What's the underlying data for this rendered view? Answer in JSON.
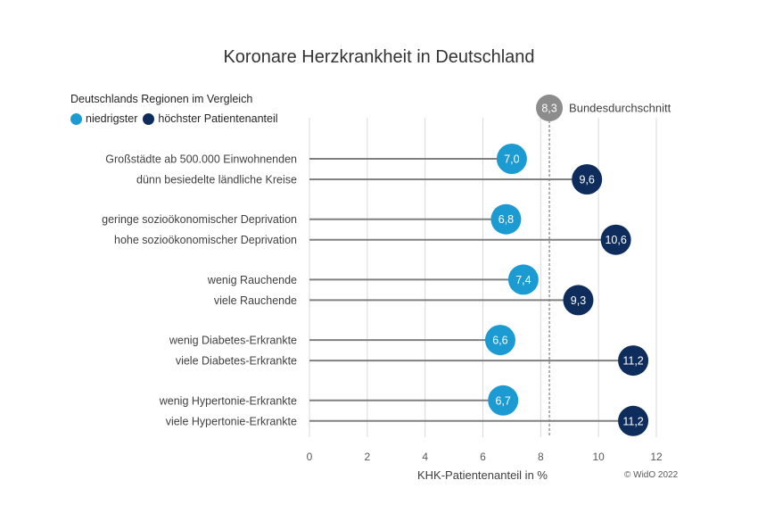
{
  "chart_data": {
    "type": "lollipop",
    "title": "Koronare Herzkrankheit in Deutschland",
    "subtitle": "Deutschlands Regionen im Vergleich",
    "legend": [
      {
        "name": "niedrigster",
        "color": "#1b9bd1"
      },
      {
        "name": "höchster Patientenanteil",
        "color": "#0f2d5c"
      }
    ],
    "xlabel": "KHK-Patientenanteil in %",
    "xlim": [
      0,
      12
    ],
    "xticks": [
      "0",
      "2",
      "4",
      "6",
      "8",
      "10",
      "12"
    ],
    "grid": "vertical",
    "reference": {
      "value": 8.3,
      "label": "8,3",
      "text": "Bundesdurchschnitt"
    },
    "rows": [
      {
        "label": "Großstädte ab 500.000 Einwohnenden",
        "value": 7.0,
        "value_label": "7,0",
        "series": "niedrigster"
      },
      {
        "label": "dünn besiedelte ländliche Kreise",
        "value": 9.6,
        "value_label": "9,6",
        "series": "höchster Patientenanteil"
      },
      {
        "label": "geringe sozioökonomischer Deprivation",
        "value": 6.8,
        "value_label": "6,8",
        "series": "niedrigster"
      },
      {
        "label": "hohe sozioökonomischer Deprivation",
        "value": 10.6,
        "value_label": "10,6",
        "series": "höchster Patientenanteil"
      },
      {
        "label": "wenig Rauchende",
        "value": 7.4,
        "value_label": "7,4",
        "series": "niedrigster"
      },
      {
        "label": "viele Rauchende",
        "value": 9.3,
        "value_label": "9,3",
        "series": "höchster Patientenanteil"
      },
      {
        "label": "wenig Diabetes-Erkrankte",
        "value": 6.6,
        "value_label": "6,6",
        "series": "niedrigster"
      },
      {
        "label": "viele Diabetes-Erkrankte",
        "value": 11.2,
        "value_label": "11,2",
        "series": "höchster Patientenanteil"
      },
      {
        "label": "wenig Hypertonie-Erkrankte",
        "value": 6.7,
        "value_label": "6,7",
        "series": "niedrigster"
      },
      {
        "label": "viele Hypertonie-Erkrankte",
        "value": 11.2,
        "value_label": "11,2",
        "series": "höchster Patientenanteil"
      }
    ]
  },
  "copyright": "© WidO 2022"
}
